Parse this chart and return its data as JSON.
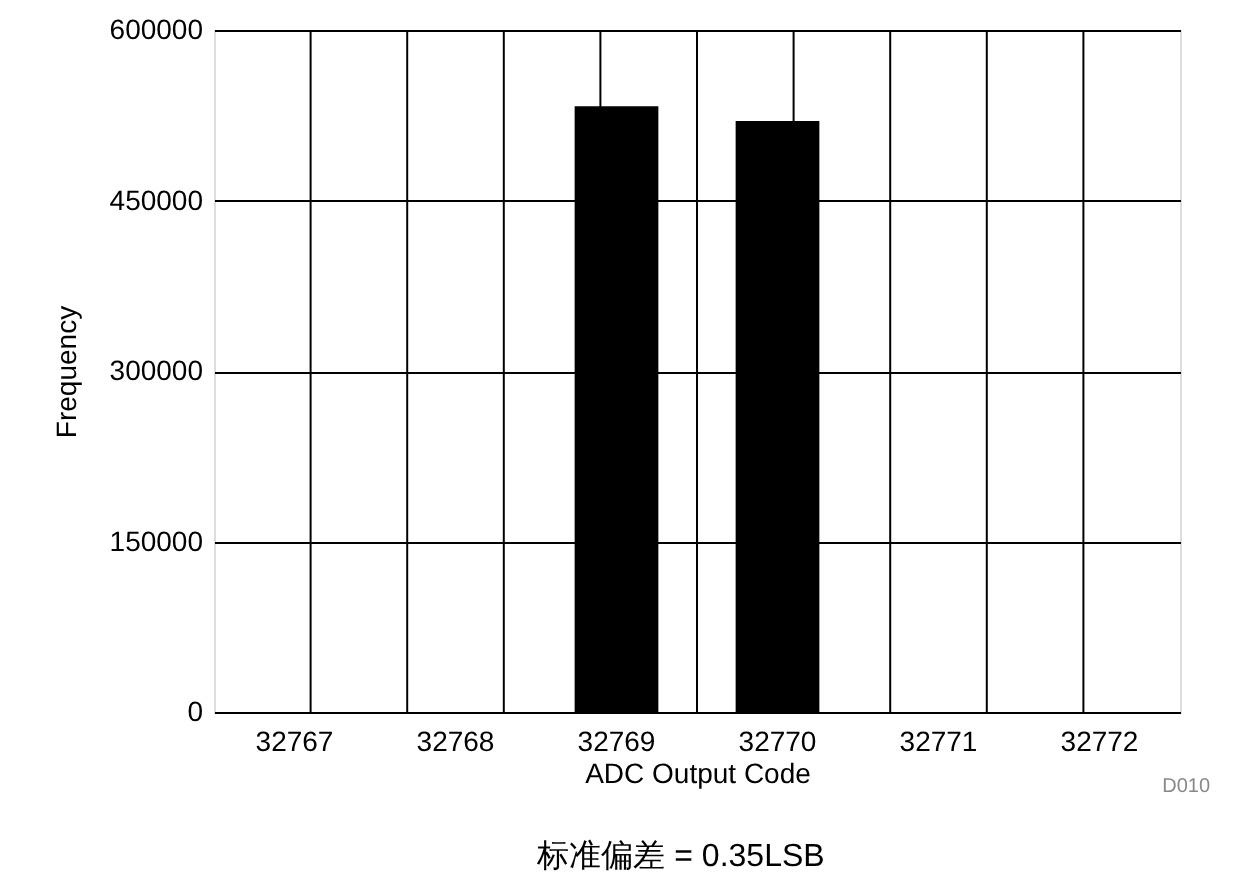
{
  "chart_data": {
    "type": "bar",
    "categories": [
      "32767",
      "32768",
      "32769",
      "32770",
      "32771",
      "32772"
    ],
    "values": [
      0,
      0,
      533000,
      520000,
      0,
      0
    ],
    "color": "#000000",
    "xlabel": "ADC Output Code",
    "ylabel": "Frequency",
    "ylim": [
      0,
      600000
    ],
    "yticks": [
      0,
      150000,
      300000,
      450000,
      600000
    ],
    "grid": true,
    "annotations": [
      "D010",
      "标准偏差 = 0.35LSB"
    ]
  }
}
